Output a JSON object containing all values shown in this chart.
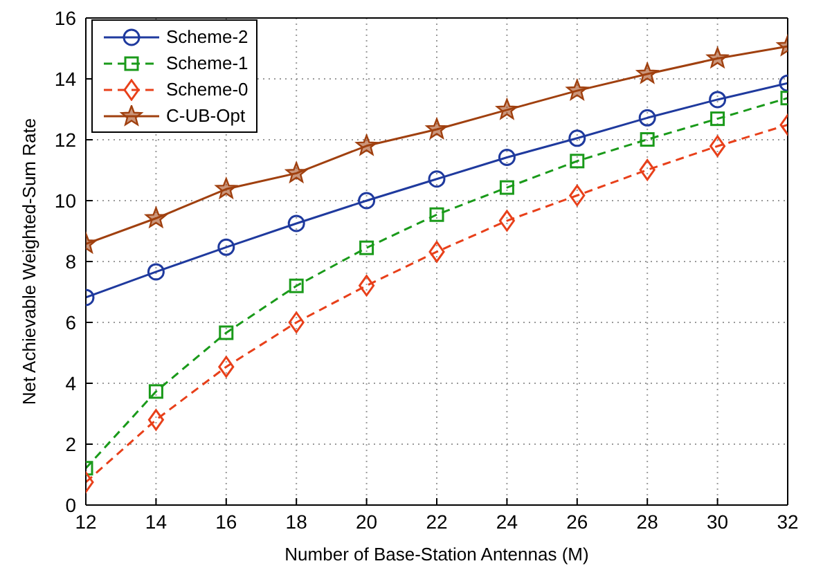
{
  "chart_data": {
    "type": "line",
    "xlabel": "Number of Base-Station Antennas (M)",
    "ylabel": "Net Achievable Weighted-Sum Rate",
    "x": [
      12,
      14,
      16,
      18,
      20,
      22,
      24,
      26,
      28,
      30,
      32
    ],
    "xlim": [
      12,
      32
    ],
    "xticks": [
      12,
      14,
      16,
      18,
      20,
      22,
      24,
      26,
      28,
      30,
      32
    ],
    "ylim": [
      0,
      16
    ],
    "yticks": [
      0,
      2,
      4,
      6,
      8,
      10,
      12,
      14,
      16
    ],
    "grid": true,
    "legend": "top left",
    "series": [
      {
        "name": "Scheme-2",
        "color": "#1f3a9e",
        "marker": "circle",
        "line_style": "solid",
        "values": [
          6.82,
          7.66,
          8.47,
          9.25,
          10.0,
          10.71,
          11.42,
          12.05,
          12.72,
          13.32,
          13.86
        ]
      },
      {
        "name": "Scheme-1",
        "color": "#1a9a1a",
        "marker": "square",
        "line_style": "dashed",
        "values": [
          1.21,
          3.73,
          5.66,
          7.2,
          8.45,
          9.54,
          10.43,
          11.3,
          12.01,
          12.69,
          13.37
        ]
      },
      {
        "name": "Scheme-0",
        "color": "#e8401a",
        "marker": "diamond",
        "line_style": "dashed",
        "values": [
          0.75,
          2.8,
          4.54,
          6.0,
          7.21,
          8.32,
          9.34,
          10.17,
          11.01,
          11.79,
          12.49
        ]
      },
      {
        "name": "C-UB-Opt",
        "color": "#a0400f",
        "marker": "star",
        "line_style": "solid",
        "values": [
          8.58,
          9.42,
          10.38,
          10.9,
          11.8,
          12.34,
          12.98,
          13.61,
          14.16,
          14.67,
          15.07
        ]
      }
    ]
  }
}
